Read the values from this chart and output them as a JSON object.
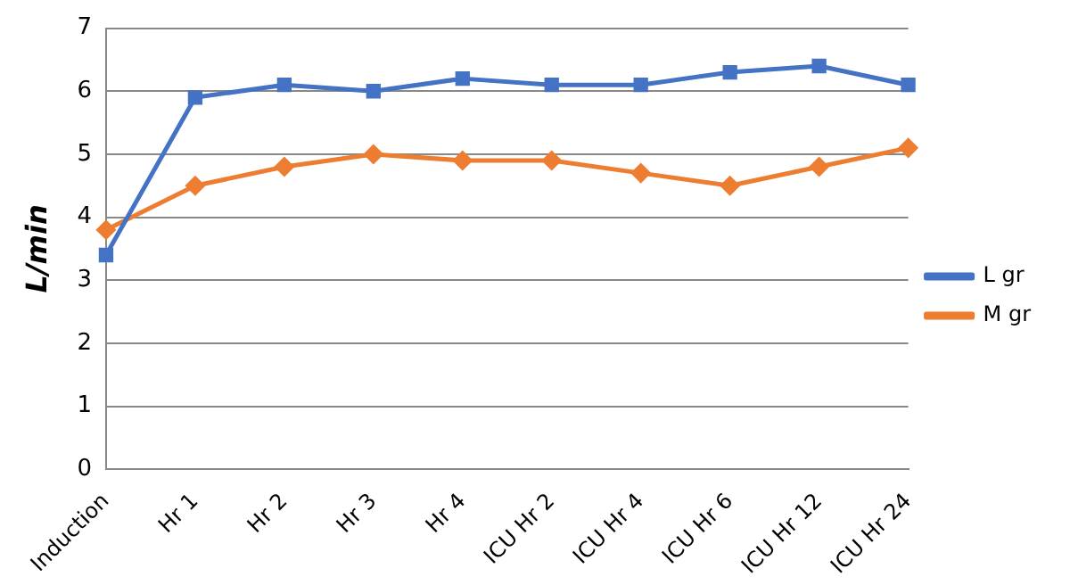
{
  "chart_data": {
    "type": "line",
    "ylabel": "L/min",
    "categories": [
      "Induction",
      "Hr 1",
      "Hr 2",
      "Hr 3",
      "Hr 4",
      "ICU Hr 2",
      "ICU Hr 4",
      "ICU Hr 6",
      "ICU Hr 12",
      "ICU Hr 24"
    ],
    "series": [
      {
        "name": "L gr",
        "color": "#4472c4",
        "marker": "square",
        "values": [
          3.4,
          5.9,
          6.1,
          6.0,
          6.2,
          6.1,
          6.1,
          6.3,
          6.4,
          6.1
        ]
      },
      {
        "name": "M gr",
        "color": "#ed7d31",
        "marker": "diamond",
        "values": [
          3.8,
          4.5,
          4.8,
          5.0,
          4.9,
          4.9,
          4.7,
          4.5,
          4.8,
          5.1
        ]
      }
    ],
    "ylim": [
      0,
      7
    ],
    "yticks": [
      0,
      1,
      2,
      3,
      4,
      5,
      6,
      7
    ],
    "grid": "y",
    "legend": "right",
    "line_style": "solid"
  }
}
